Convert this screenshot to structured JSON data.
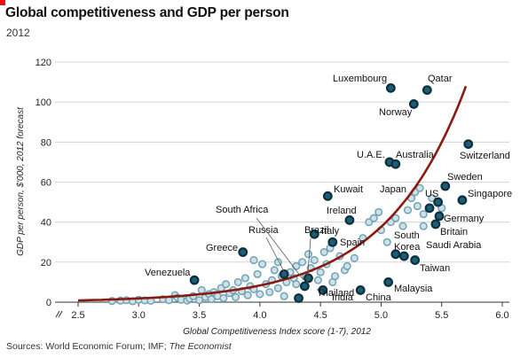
{
  "title": "Global competitiveness and GDP per person",
  "subtitle": "2012",
  "source_prefix": "Sources: World Economic Forum; IMF; ",
  "source_italic": "The Economist",
  "colors": {
    "accent": "#e3120b",
    "curve": "#8b1a0e",
    "highlight_fill": "#1a5f78",
    "highlight_stroke": "#0d2f3c",
    "other_fill": "#cfe0e6",
    "other_stroke": "#6fa3b5",
    "grid": "#cccccc"
  },
  "chart_data": {
    "type": "scatter",
    "xlabel": "Global Competitiveness Index score (1-7), 2012",
    "ylabel": "GDP per person, $'000, 2012 forecast",
    "xlim": [
      2.5,
      6.0
    ],
    "ylim": [
      0,
      120
    ],
    "x_ticks": [
      "2.5",
      "3.0",
      "3.5",
      "4.0",
      "4.5",
      "5.0",
      "5.5",
      "6.0"
    ],
    "y_ticks": [
      "0",
      "20",
      "40",
      "60",
      "80",
      "100",
      "120"
    ],
    "x_axis_break": true,
    "grid": "horizontal",
    "trend": {
      "type": "exponential",
      "a": 0.0203,
      "b": 1.505,
      "x_start": 2.5,
      "x_end": 5.7
    },
    "highlighted": [
      {
        "name": "Luxembourg",
        "x": 5.08,
        "y": 107
      },
      {
        "name": "Qatar",
        "x": 5.38,
        "y": 106
      },
      {
        "name": "Norway",
        "x": 5.27,
        "y": 99
      },
      {
        "name": "Switzerland",
        "x": 5.72,
        "y": 79
      },
      {
        "name": "U.A.E.",
        "x": 5.07,
        "y": 70
      },
      {
        "name": "Australia",
        "x": 5.12,
        "y": 69
      },
      {
        "name": "Sweden",
        "x": 5.53,
        "y": 58
      },
      {
        "name": "Singapore",
        "x": 5.67,
        "y": 51
      },
      {
        "name": "Kuwait",
        "x": 4.56,
        "y": 53
      },
      {
        "name": "US",
        "x": 5.47,
        "y": 50
      },
      {
        "name": "Japan",
        "x": 5.4,
        "y": 47
      },
      {
        "name": "Germany",
        "x": 5.48,
        "y": 43
      },
      {
        "name": "Britain",
        "x": 5.45,
        "y": 39
      },
      {
        "name": "Ireland",
        "x": 4.74,
        "y": 41
      },
      {
        "name": "Italy",
        "x": 4.45,
        "y": 34
      },
      {
        "name": "Spain",
        "x": 4.6,
        "y": 30
      },
      {
        "name": "South Korea",
        "x": 5.12,
        "y": 24
      },
      {
        "name": "Saudi Arabia",
        "x": 5.19,
        "y": 23
      },
      {
        "name": "Taiwan",
        "x": 5.28,
        "y": 21
      },
      {
        "name": "Greece",
        "x": 3.86,
        "y": 25
      },
      {
        "name": "Brazil",
        "x": 4.4,
        "y": 12
      },
      {
        "name": "Russia",
        "x": 4.2,
        "y": 14
      },
      {
        "name": "South Africa",
        "x": 4.37,
        "y": 8
      },
      {
        "name": "Venezuela",
        "x": 3.46,
        "y": 11
      },
      {
        "name": "Malaysia",
        "x": 5.06,
        "y": 10
      },
      {
        "name": "Thailand",
        "x": 4.52,
        "y": 6
      },
      {
        "name": "China",
        "x": 4.83,
        "y": 6
      },
      {
        "name": "India",
        "x": 4.32,
        "y": 2
      }
    ],
    "others": [
      [
        2.78,
        0.6
      ],
      [
        2.85,
        0.8
      ],
      [
        2.9,
        1.0
      ],
      [
        2.95,
        0.5
      ],
      [
        3.0,
        1.2
      ],
      [
        3.05,
        0.9
      ],
      [
        3.1,
        0.7
      ],
      [
        3.2,
        1.5
      ],
      [
        3.25,
        1.0
      ],
      [
        3.3,
        3.5
      ],
      [
        3.32,
        2.2
      ],
      [
        3.35,
        1.2
      ],
      [
        3.4,
        0.8
      ],
      [
        3.42,
        1.8
      ],
      [
        3.45,
        3.0
      ],
      [
        3.5,
        1.0
      ],
      [
        3.52,
        6.0
      ],
      [
        3.55,
        2.5
      ],
      [
        3.58,
        4.0
      ],
      [
        3.6,
        1.5
      ],
      [
        3.62,
        5.0
      ],
      [
        3.65,
        3.0
      ],
      [
        3.68,
        7.0
      ],
      [
        3.7,
        2.0
      ],
      [
        3.72,
        9.0
      ],
      [
        3.75,
        4.5
      ],
      [
        3.78,
        6.0
      ],
      [
        3.8,
        2.5
      ],
      [
        3.82,
        10.0
      ],
      [
        3.85,
        5.5
      ],
      [
        3.88,
        12.0
      ],
      [
        3.9,
        3.5
      ],
      [
        3.92,
        8.0
      ],
      [
        3.95,
        6.5
      ],
      [
        3.98,
        14.0
      ],
      [
        4.0,
        4.0
      ],
      [
        4.02,
        19.0
      ],
      [
        4.05,
        9.0
      ],
      [
        4.08,
        5.0
      ],
      [
        4.1,
        11.0
      ],
      [
        4.12,
        16.0
      ],
      [
        4.15,
        7.0
      ],
      [
        4.18,
        13.0
      ],
      [
        4.2,
        3.0
      ],
      [
        4.22,
        10.0
      ],
      [
        4.25,
        15.0
      ],
      [
        4.28,
        12.0
      ],
      [
        4.3,
        9.0
      ],
      [
        4.35,
        20.0
      ],
      [
        4.38,
        13.0
      ],
      [
        4.4,
        24.0
      ],
      [
        4.42,
        17.0
      ],
      [
        4.45,
        21.0
      ],
      [
        4.48,
        11.0
      ],
      [
        4.5,
        15.0
      ],
      [
        4.53,
        25.0
      ],
      [
        4.55,
        19.0
      ],
      [
        4.58,
        27.0
      ],
      [
        4.62,
        13.0
      ],
      [
        4.66,
        23.0
      ],
      [
        4.7,
        16.0
      ],
      [
        4.72,
        18.0
      ],
      [
        4.78,
        22.0
      ],
      [
        4.85,
        32.0
      ],
      [
        4.9,
        40.0
      ],
      [
        4.94,
        42.0
      ],
      [
        4.98,
        45.0
      ],
      [
        5.0,
        36.0
      ],
      [
        5.05,
        30.0
      ],
      [
        5.08,
        40.0
      ],
      [
        5.12,
        42.0
      ],
      [
        5.18,
        38.0
      ],
      [
        5.22,
        46.0
      ],
      [
        5.25,
        52.0
      ],
      [
        5.28,
        55.0
      ],
      [
        5.3,
        48.0
      ],
      [
        5.32,
        57.0
      ],
      [
        5.35,
        44.0
      ],
      [
        5.42,
        52.0
      ],
      [
        5.5,
        47.0
      ],
      [
        5.35,
        38.0
      ],
      [
        4.6,
        10.0
      ],
      [
        4.3,
        18.0
      ],
      [
        4.15,
        20.0
      ],
      [
        3.95,
        21.0
      ]
    ]
  }
}
